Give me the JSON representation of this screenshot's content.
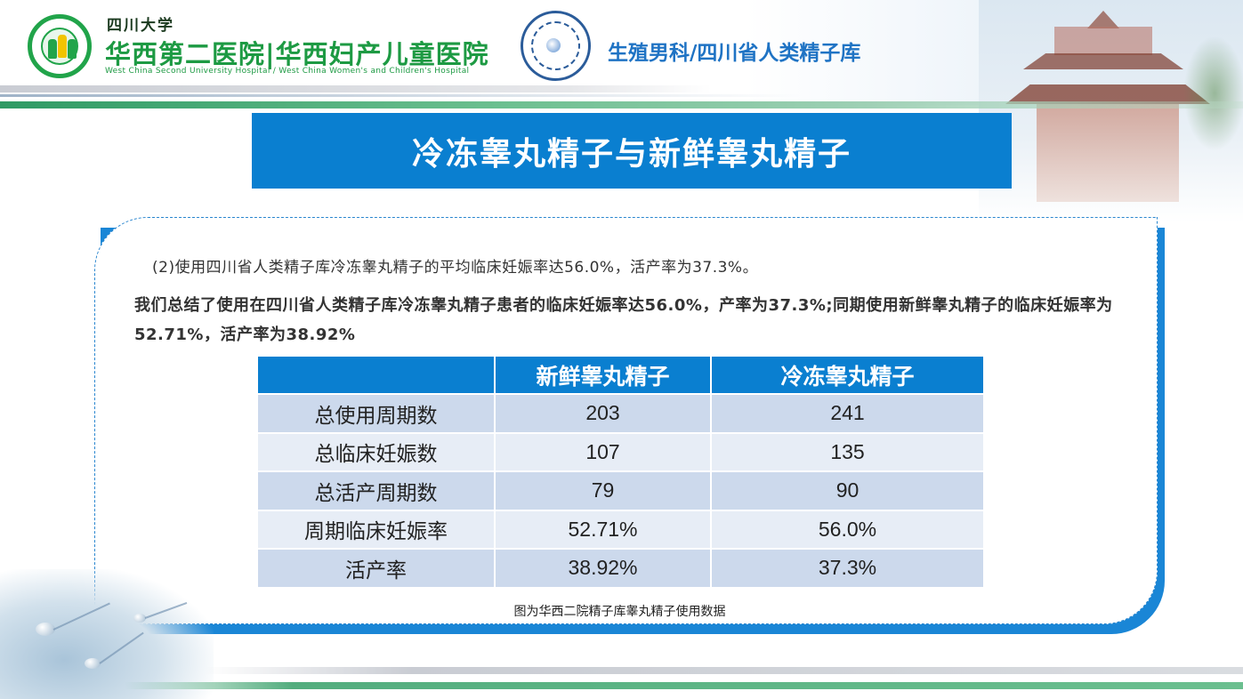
{
  "header": {
    "university": "四川大学",
    "hospital_name": "华西第二医院|华西妇产儿童医院",
    "hospital_english": "West China Second University Hospital / West China Women's and Children's Hospital",
    "department": "生殖男科/四川省人类精子库"
  },
  "slide": {
    "title": "冷冻睾丸精子与新鲜睾丸精子",
    "paragraph_1": "(2)使用四川省人类精子库冷冻睾丸精子的平均临床妊娠率达56.0%，活产率为37.3%。",
    "paragraph_2": "我们总结了使用在四川省人类精子库冷冻睾丸精子患者的临床妊娠率达56.0%，产率为37.3%;同期使用新鲜睾丸精子的临床妊娠率为52.71%，活产率为38.92%",
    "caption": "图为华西二院精子库睾丸精子使用数据"
  },
  "table": {
    "headers": [
      "",
      "新鲜睾丸精子",
      "冷冻睾丸精子"
    ],
    "rows": [
      {
        "label": "总使用周期数",
        "fresh": "203",
        "frozen": "241"
      },
      {
        "label": "总临床妊娠数",
        "fresh": "107",
        "frozen": "135"
      },
      {
        "label": "总活产周期数",
        "fresh": "79",
        "frozen": "90"
      },
      {
        "label": "周期临床妊娠率",
        "fresh": "52.71%",
        "frozen": "56.0%"
      },
      {
        "label": "活产率",
        "fresh": "38.92%",
        "frozen": "37.3%"
      }
    ]
  },
  "colors": {
    "accent_blue": "#0a7fd0",
    "hospital_green": "#1d9a43",
    "dept_blue": "#1f73c4",
    "row_dark": "#ccd9ec",
    "row_light": "#e7edf6"
  },
  "icons": [
    "hospital-logo-icon",
    "sperm-bank-logo-icon",
    "pagoda-decoration",
    "sperm-decoration"
  ]
}
